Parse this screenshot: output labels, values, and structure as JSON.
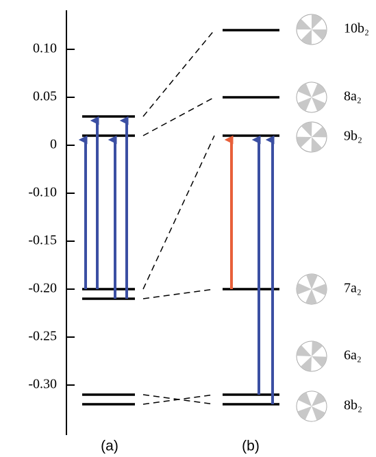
{
  "chart_data": {
    "type": "energy-levels",
    "yticks": [
      {
        "value": 0.1,
        "label": "0.10"
      },
      0.05,
      0,
      {
        "value": -0.1,
        "label": "-0.10"
      },
      -0.15,
      {
        "value": -0.2,
        "label": "-0.20"
      },
      -0.25,
      {
        "value": -0.3,
        "label": "-0.30"
      }
    ],
    "columns": [
      {
        "label": "(a)",
        "levels": [
          0.03,
          0.01,
          -0.2,
          -0.21,
          -0.31,
          -0.32
        ]
      },
      {
        "label": "(b)",
        "levels": [
          0.12,
          0.05,
          0.01,
          -0.2,
          -0.31,
          -0.32
        ],
        "names": [
          "10b₂",
          "8a₂",
          "9b₂",
          "7a₂",
          "6a₂",
          "8b₂"
        ]
      }
    ],
    "correlations": [
      [
        0,
        0
      ],
      [
        1,
        1
      ],
      [
        2,
        2
      ],
      [
        3,
        3
      ],
      [
        4,
        5
      ],
      [
        5,
        4
      ]
    ],
    "arrows": [
      {
        "column": 0,
        "from": 2,
        "to": 1,
        "color": "#3b4fa3"
      },
      {
        "column": 0,
        "from": 2,
        "to": 0,
        "color": "#3b4fa3"
      },
      {
        "column": 0,
        "from": 3,
        "to": 1,
        "color": "#3b4fa3"
      },
      {
        "column": 0,
        "from": 3,
        "to": 0,
        "color": "#3b4fa3"
      },
      {
        "column": 1,
        "from": 3,
        "to": 2,
        "color": "#e8603a"
      },
      {
        "column": 1,
        "from": 4,
        "to": 2,
        "color": "#3b4fa3"
      },
      {
        "column": 1,
        "from": 5,
        "to": 2,
        "color": "#3b4fa3"
      }
    ]
  }
}
